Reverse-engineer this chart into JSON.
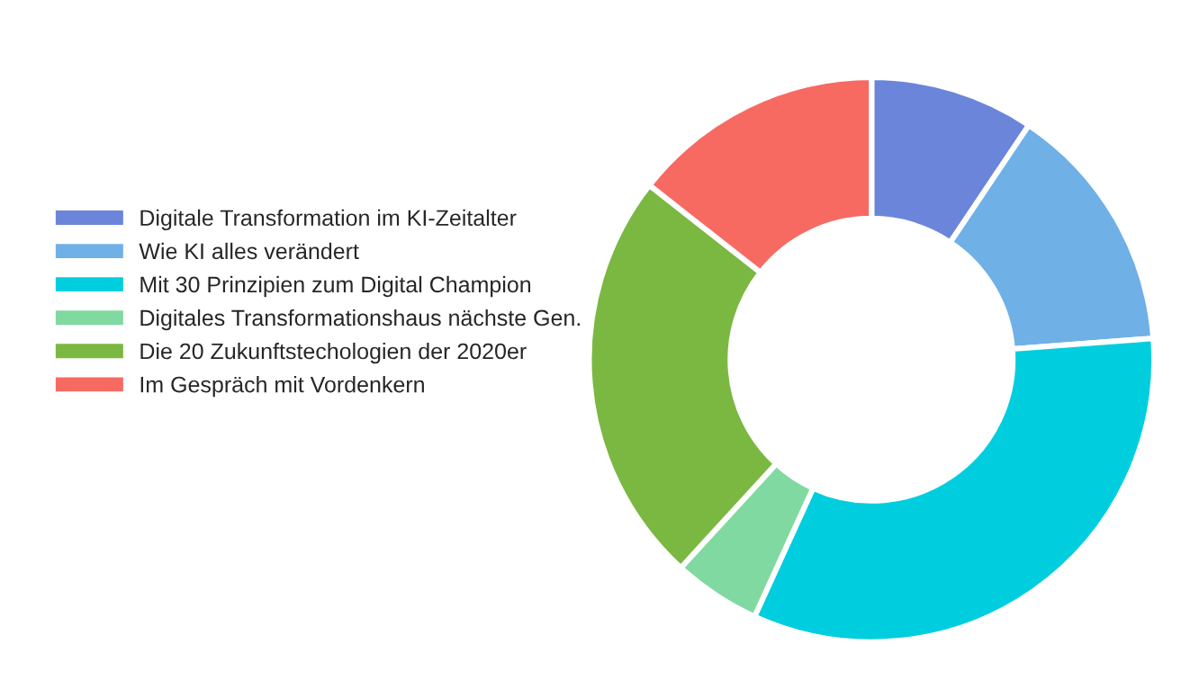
{
  "chart_data": {
    "type": "donut",
    "categories": [
      "Digitale Transformation im KI-Zeitalter",
      "Wie KI alles verändert",
      "Mit 30 Prinzipien zum Digital Champion",
      "Digitales Transformationshaus nächste Gen.",
      "Die 20 Zukunftstechologien der 2020er",
      "Im Gespräch mit Vordenkern"
    ],
    "values": [
      9.4,
      14.4,
      33.0,
      5.0,
      23.8,
      14.4
    ],
    "colors": [
      "#6b85da",
      "#6fb0e6",
      "#00cede",
      "#80d9a0",
      "#7ab842",
      "#f66a62"
    ],
    "legend": "left"
  }
}
